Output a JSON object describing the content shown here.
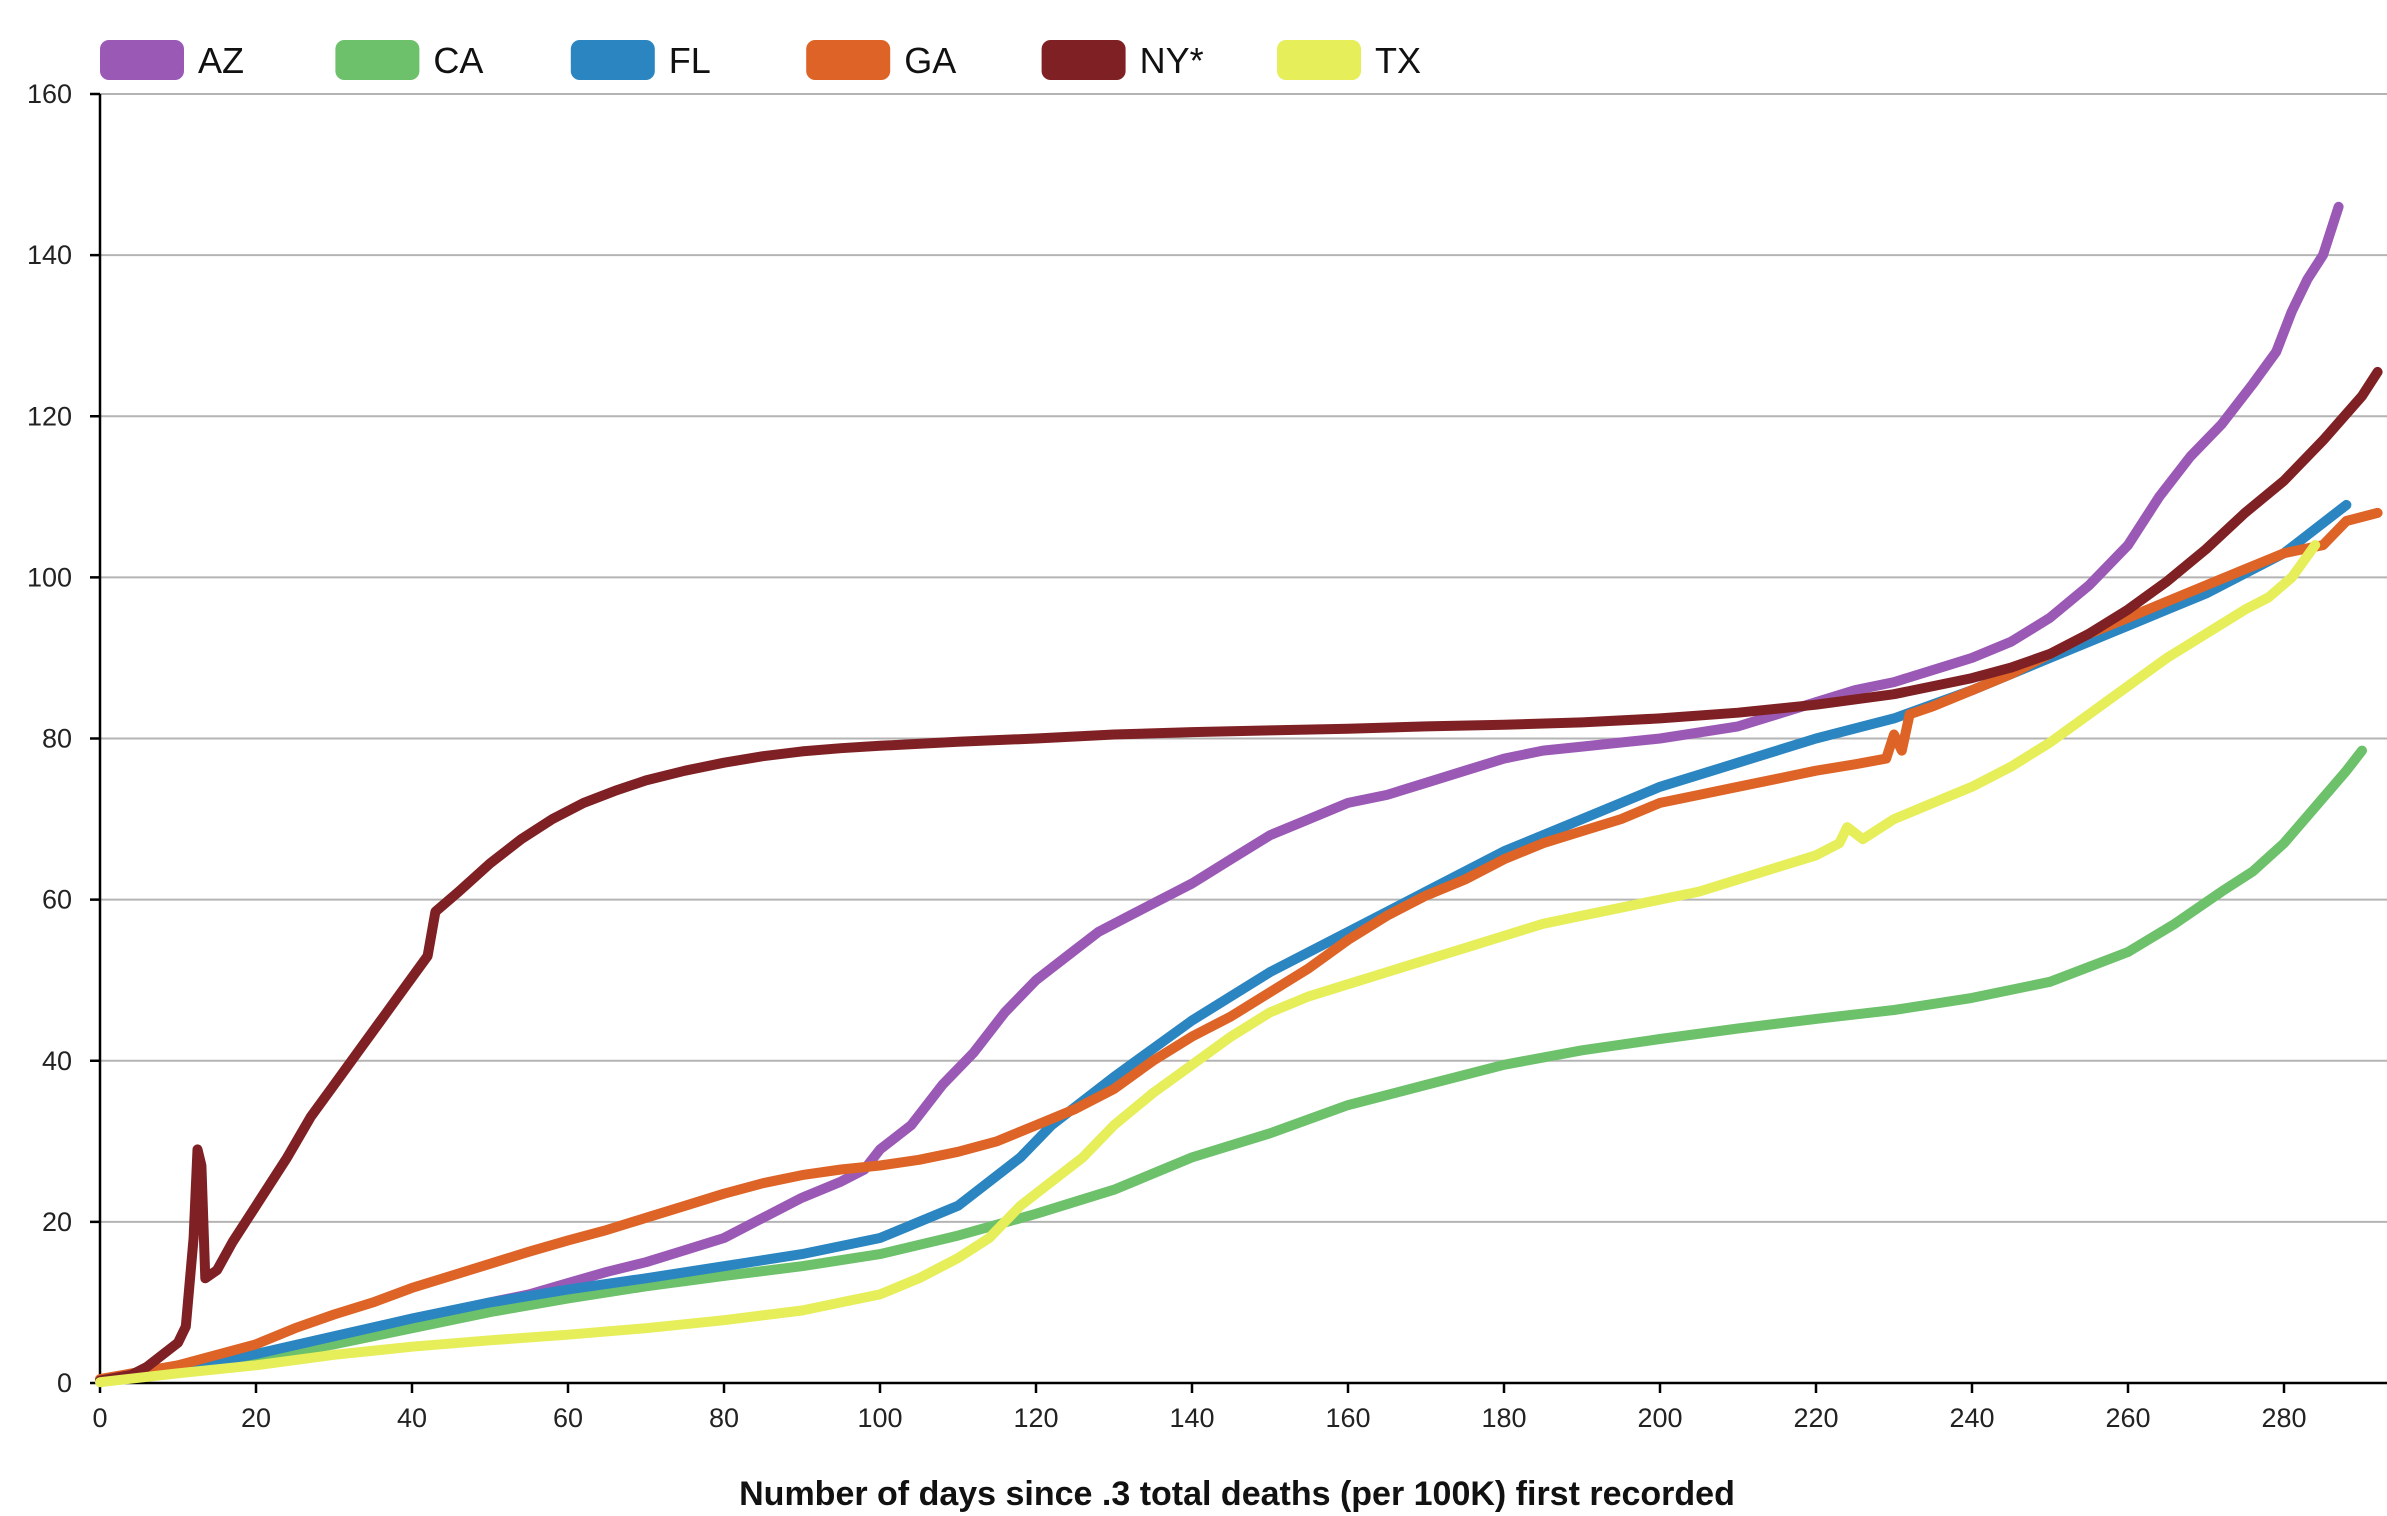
{
  "colors": {
    "AZ": "#9b59b6",
    "CA": "#6cc16a",
    "FL": "#2a85c1",
    "GA": "#dd6426",
    "NY*": "#7f2124",
    "TX": "#e6ee5a",
    "grid": "#b4b4b4",
    "axis": "#000000"
  },
  "chart_data": {
    "type": "line",
    "title": "",
    "xlabel": "Number of days since .3 total deaths (per 100K) first recorded",
    "ylabel": "",
    "xlim": [
      0,
      292
    ],
    "ylim": [
      0,
      160
    ],
    "xticks": [
      0,
      20,
      40,
      60,
      80,
      100,
      120,
      140,
      160,
      180,
      200,
      220,
      240,
      260,
      280
    ],
    "yticks": [
      0,
      20,
      40,
      60,
      80,
      100,
      120,
      140,
      160
    ],
    "grid": true,
    "legend_position": "top",
    "series": [
      {
        "name": "AZ",
        "points": [
          [
            0,
            0.3
          ],
          [
            5,
            0.8
          ],
          [
            10,
            1.6
          ],
          [
            15,
            2.5
          ],
          [
            20,
            3.5
          ],
          [
            25,
            4.6
          ],
          [
            30,
            5.7
          ],
          [
            35,
            6.8
          ],
          [
            40,
            7.8
          ],
          [
            45,
            8.9
          ],
          [
            50,
            10
          ],
          [
            55,
            11
          ],
          [
            60,
            12.4
          ],
          [
            65,
            13.8
          ],
          [
            70,
            15
          ],
          [
            75,
            16.5
          ],
          [
            80,
            18
          ],
          [
            85,
            20.5
          ],
          [
            90,
            23
          ],
          [
            95,
            25
          ],
          [
            98,
            26.5
          ],
          [
            100,
            29
          ],
          [
            104,
            32
          ],
          [
            108,
            37
          ],
          [
            112,
            41
          ],
          [
            116,
            46
          ],
          [
            120,
            50
          ],
          [
            124,
            53
          ],
          [
            128,
            56
          ],
          [
            132,
            58
          ],
          [
            136,
            60
          ],
          [
            140,
            62
          ],
          [
            145,
            65
          ],
          [
            150,
            68
          ],
          [
            155,
            70
          ],
          [
            160,
            72
          ],
          [
            165,
            73
          ],
          [
            170,
            74.5
          ],
          [
            175,
            76
          ],
          [
            180,
            77.5
          ],
          [
            185,
            78.5
          ],
          [
            190,
            79
          ],
          [
            195,
            79.5
          ],
          [
            200,
            80
          ],
          [
            210,
            81.5
          ],
          [
            215,
            83
          ],
          [
            220,
            84.5
          ],
          [
            225,
            86
          ],
          [
            230,
            87
          ],
          [
            235,
            88.5
          ],
          [
            240,
            90
          ],
          [
            245,
            92
          ],
          [
            250,
            95
          ],
          [
            255,
            99
          ],
          [
            260,
            104
          ],
          [
            264,
            110
          ],
          [
            268,
            115
          ],
          [
            272,
            119
          ],
          [
            276,
            124
          ],
          [
            279,
            128
          ],
          [
            281,
            133
          ],
          [
            283,
            137
          ],
          [
            285,
            140
          ],
          [
            287,
            146
          ]
        ]
      },
      {
        "name": "CA",
        "points": [
          [
            0,
            0.2
          ],
          [
            10,
            1.4
          ],
          [
            20,
            3
          ],
          [
            30,
            4.8
          ],
          [
            40,
            6.8
          ],
          [
            50,
            8.8
          ],
          [
            60,
            10.5
          ],
          [
            70,
            12
          ],
          [
            80,
            13.3
          ],
          [
            90,
            14.5
          ],
          [
            100,
            16
          ],
          [
            110,
            18.3
          ],
          [
            120,
            21
          ],
          [
            130,
            24
          ],
          [
            140,
            28
          ],
          [
            150,
            31
          ],
          [
            160,
            34.5
          ],
          [
            170,
            37
          ],
          [
            180,
            39.5
          ],
          [
            190,
            41.3
          ],
          [
            200,
            42.7
          ],
          [
            210,
            44
          ],
          [
            220,
            45.2
          ],
          [
            230,
            46.3
          ],
          [
            240,
            47.8
          ],
          [
            250,
            49.8
          ],
          [
            260,
            53.5
          ],
          [
            266,
            57
          ],
          [
            272,
            61
          ],
          [
            276,
            63.5
          ],
          [
            280,
            67
          ],
          [
            284,
            71.5
          ],
          [
            288,
            76
          ],
          [
            290,
            78.5
          ]
        ]
      },
      {
        "name": "FL",
        "points": [
          [
            0,
            0.3
          ],
          [
            10,
            1.8
          ],
          [
            20,
            3.6
          ],
          [
            30,
            5.8
          ],
          [
            40,
            8
          ],
          [
            50,
            10
          ],
          [
            60,
            11.6
          ],
          [
            70,
            13
          ],
          [
            80,
            14.5
          ],
          [
            90,
            16
          ],
          [
            100,
            18
          ],
          [
            110,
            22
          ],
          [
            118,
            28
          ],
          [
            122,
            32
          ],
          [
            130,
            38
          ],
          [
            140,
            45
          ],
          [
            150,
            51
          ],
          [
            160,
            56
          ],
          [
            170,
            61
          ],
          [
            180,
            66
          ],
          [
            190,
            70
          ],
          [
            200,
            74
          ],
          [
            210,
            77
          ],
          [
            220,
            80
          ],
          [
            230,
            82.5
          ],
          [
            240,
            86
          ],
          [
            250,
            90
          ],
          [
            260,
            94
          ],
          [
            270,
            98
          ],
          [
            280,
            103
          ],
          [
            288,
            109
          ]
        ]
      },
      {
        "name": "GA",
        "points": [
          [
            0,
            0.5
          ],
          [
            10,
            2.2
          ],
          [
            20,
            4.8
          ],
          [
            25,
            6.8
          ],
          [
            30,
            8.5
          ],
          [
            35,
            10
          ],
          [
            40,
            11.8
          ],
          [
            45,
            13.3
          ],
          [
            50,
            14.8
          ],
          [
            55,
            16.3
          ],
          [
            60,
            17.7
          ],
          [
            65,
            19
          ],
          [
            70,
            20.5
          ],
          [
            75,
            22
          ],
          [
            80,
            23.5
          ],
          [
            85,
            24.8
          ],
          [
            90,
            25.8
          ],
          [
            95,
            26.5
          ],
          [
            100,
            27
          ],
          [
            105,
            27.7
          ],
          [
            110,
            28.7
          ],
          [
            115,
            30
          ],
          [
            120,
            32
          ],
          [
            125,
            34
          ],
          [
            130,
            36.5
          ],
          [
            135,
            40
          ],
          [
            140,
            43
          ],
          [
            145,
            45.5
          ],
          [
            150,
            48.5
          ],
          [
            155,
            51.5
          ],
          [
            160,
            55
          ],
          [
            165,
            58
          ],
          [
            170,
            60.5
          ],
          [
            175,
            62.5
          ],
          [
            180,
            65
          ],
          [
            185,
            67
          ],
          [
            190,
            68.5
          ],
          [
            195,
            70
          ],
          [
            200,
            72
          ],
          [
            205,
            73
          ],
          [
            210,
            74
          ],
          [
            215,
            75
          ],
          [
            220,
            76
          ],
          [
            225,
            76.8
          ],
          [
            229,
            77.5
          ],
          [
            230,
            80.5
          ],
          [
            231,
            78.5
          ],
          [
            232,
            83
          ],
          [
            235,
            84
          ],
          [
            240,
            86
          ],
          [
            245,
            88
          ],
          [
            250,
            90.5
          ],
          [
            255,
            93
          ],
          [
            260,
            95
          ],
          [
            265,
            97
          ],
          [
            270,
            99
          ],
          [
            275,
            101
          ],
          [
            280,
            103
          ],
          [
            285,
            104
          ],
          [
            288,
            107
          ],
          [
            292,
            108
          ]
        ]
      },
      {
        "name": "NY*",
        "points": [
          [
            0,
            0.3
          ],
          [
            4,
            1
          ],
          [
            6,
            2
          ],
          [
            8,
            3.5
          ],
          [
            10,
            5
          ],
          [
            11,
            7
          ],
          [
            12,
            18
          ],
          [
            12.5,
            29
          ],
          [
            13,
            27
          ],
          [
            13.5,
            13
          ],
          [
            15,
            14
          ],
          [
            17,
            17.5
          ],
          [
            20,
            22
          ],
          [
            24,
            28
          ],
          [
            27,
            33
          ],
          [
            30,
            37
          ],
          [
            33,
            41
          ],
          [
            36,
            45
          ],
          [
            39,
            49
          ],
          [
            42,
            53
          ],
          [
            43,
            58.5
          ],
          [
            46,
            61
          ],
          [
            50,
            64.5
          ],
          [
            54,
            67.5
          ],
          [
            58,
            70
          ],
          [
            62,
            72
          ],
          [
            66,
            73.5
          ],
          [
            70,
            74.8
          ],
          [
            75,
            76
          ],
          [
            80,
            77
          ],
          [
            85,
            77.8
          ],
          [
            90,
            78.4
          ],
          [
            95,
            78.8
          ],
          [
            100,
            79.1
          ],
          [
            110,
            79.6
          ],
          [
            120,
            80
          ],
          [
            130,
            80.5
          ],
          [
            140,
            80.8
          ],
          [
            150,
            81
          ],
          [
            160,
            81.2
          ],
          [
            170,
            81.5
          ],
          [
            180,
            81.7
          ],
          [
            190,
            82
          ],
          [
            200,
            82.5
          ],
          [
            210,
            83.2
          ],
          [
            220,
            84.2
          ],
          [
            230,
            85.5
          ],
          [
            240,
            87.5
          ],
          [
            245,
            88.8
          ],
          [
            250,
            90.5
          ],
          [
            255,
            93
          ],
          [
            260,
            96
          ],
          [
            265,
            99.5
          ],
          [
            270,
            103.5
          ],
          [
            275,
            108
          ],
          [
            280,
            112
          ],
          [
            285,
            117
          ],
          [
            290,
            122.5
          ],
          [
            292,
            125.5
          ]
        ]
      },
      {
        "name": "TX",
        "points": [
          [
            0,
            0.1
          ],
          [
            10,
            1.2
          ],
          [
            20,
            2.2
          ],
          [
            30,
            3.5
          ],
          [
            40,
            4.5
          ],
          [
            50,
            5.3
          ],
          [
            60,
            6
          ],
          [
            70,
            6.8
          ],
          [
            80,
            7.8
          ],
          [
            90,
            9
          ],
          [
            95,
            10
          ],
          [
            100,
            11
          ],
          [
            105,
            13
          ],
          [
            110,
            15.5
          ],
          [
            114,
            18
          ],
          [
            118,
            22
          ],
          [
            122,
            25
          ],
          [
            126,
            28
          ],
          [
            130,
            32
          ],
          [
            135,
            36
          ],
          [
            140,
            39.5
          ],
          [
            145,
            43
          ],
          [
            150,
            46
          ],
          [
            155,
            48
          ],
          [
            160,
            49.5
          ],
          [
            165,
            51
          ],
          [
            170,
            52.5
          ],
          [
            175,
            54
          ],
          [
            180,
            55.5
          ],
          [
            185,
            57
          ],
          [
            190,
            58
          ],
          [
            195,
            59
          ],
          [
            200,
            60
          ],
          [
            205,
            61
          ],
          [
            210,
            62.5
          ],
          [
            215,
            64
          ],
          [
            220,
            65.5
          ],
          [
            223,
            67
          ],
          [
            224,
            69
          ],
          [
            226,
            67.5
          ],
          [
            230,
            70
          ],
          [
            235,
            72
          ],
          [
            240,
            74
          ],
          [
            245,
            76.5
          ],
          [
            250,
            79.5
          ],
          [
            255,
            83
          ],
          [
            260,
            86.5
          ],
          [
            265,
            90
          ],
          [
            270,
            93
          ],
          [
            275,
            96
          ],
          [
            278,
            97.5
          ],
          [
            281,
            100
          ],
          [
            284,
            104
          ]
        ]
      }
    ]
  }
}
